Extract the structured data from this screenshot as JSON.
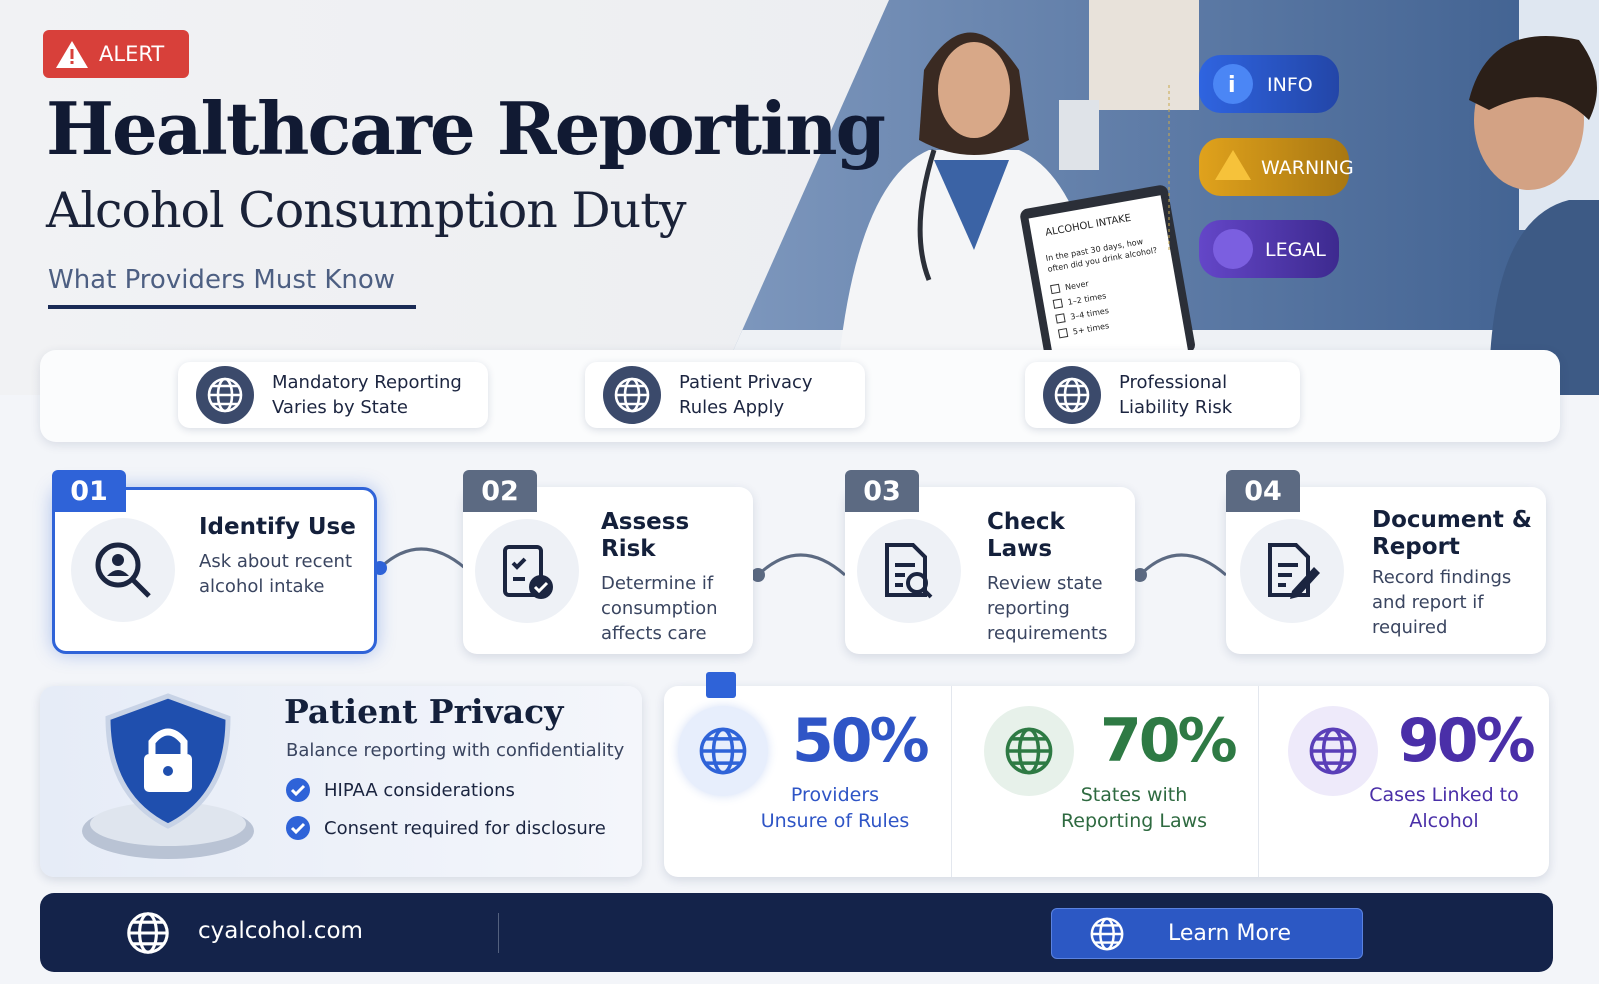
{
  "alert": "ALERT",
  "header": {
    "title": "Healthcare Reporting",
    "subtitle": "Alcohol Consumption Duty",
    "tagline": "What Providers Must Know"
  },
  "photo": {
    "form": {
      "title": "ALCOHOL INTAKE",
      "question": [
        "In the past 30 days, how",
        "often did you drink alcohol?"
      ],
      "options": [
        "Never",
        "1–2 times",
        "3–4 times",
        "5+ times"
      ]
    },
    "badges": [
      "INFO",
      "WARNING",
      "LEGAL"
    ]
  },
  "highlights": [
    "Mandatory Reporting Varies by State",
    "Patient Privacy Rules Apply",
    "Professional Liability Risk"
  ],
  "steps": [
    {
      "number": "01",
      "title": "Identify Use",
      "text": "Ask about recent alcohol intake"
    },
    {
      "number": "02",
      "title": "Assess Risk",
      "text": "Determine if consumption affects care"
    },
    {
      "number": "03",
      "title": "Check Laws",
      "text": "Review state reporting requirements"
    },
    {
      "number": "04",
      "title": "Document & Report",
      "text": "Record findings and report if required"
    }
  ],
  "privacy": {
    "title": "Patient Privacy",
    "text": "Balance reporting with confidentiality",
    "items": [
      "HIPAA considerations",
      "Consent required for disclosure"
    ]
  },
  "stats": [
    {
      "value": "50%",
      "label": "Providers Unsure of Rules"
    },
    {
      "value": "70%",
      "label": "States with Reporting Laws"
    },
    {
      "value": "90%",
      "label": "Cases Linked to Alcohol"
    }
  ],
  "footer": {
    "site": "cyalcohol.com",
    "button": "Learn More"
  }
}
